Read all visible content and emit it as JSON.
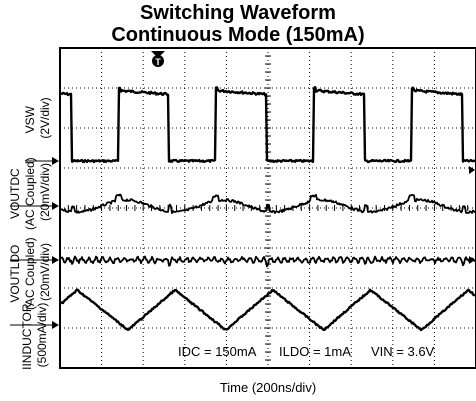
{
  "title": "Switching Waveform",
  "subtitle": "Continuous Mode (150mA)",
  "trigger_marker": "T",
  "chart_data": {
    "type": "line",
    "title": "Switching Waveform Continuous Mode (150mA)",
    "xlabel": "Time (200ns/div)",
    "x_divisions": 10,
    "y_divisions": 8,
    "grid": true,
    "switching_period_divs": 2.35,
    "channels": [
      {
        "name": "VSW",
        "label_lines": [
          "VSW",
          "(2V/div)"
        ],
        "waveform": "square",
        "low_level_div": -0.4,
        "high_level_div": 1.6,
        "duty_cycle": 0.52
      },
      {
        "name": "VOUTDC",
        "label_lines": [
          "VOUTDC",
          "(AC Coupled)",
          "(20mV/div)"
        ],
        "waveform": "ripple",
        "ripple_pp_div": 0.3
      },
      {
        "name": "VOUTLDO",
        "label_lines": [
          "VOUTLDO",
          "(AC Coupled)",
          "(20mV/div)"
        ],
        "waveform": "flat-noise",
        "ripple_pp_div": 0.1
      },
      {
        "name": "IINDUCTOR",
        "label_lines": [
          "IINDUCTOR",
          "(500mA/div)"
        ],
        "waveform": "triangle",
        "ripple_pp_div": 1.0
      }
    ],
    "annotations": [
      {
        "text": "IDC = 150mA"
      },
      {
        "text": "ILDO = 1mA"
      },
      {
        "text": "VIN = 3.6V"
      }
    ]
  }
}
